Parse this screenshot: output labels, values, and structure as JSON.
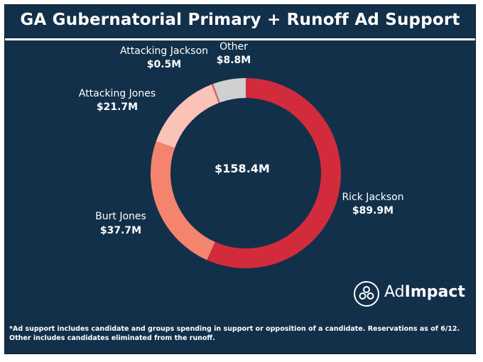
{
  "title": "GA Gubernatorial Primary + Runoff Ad Support",
  "chart_data": {
    "type": "pie",
    "style": "donut",
    "total_label": "$158.4M",
    "slices": [
      {
        "label": "Rick Jackson",
        "value_label": "$89.9M",
        "value": 89.9,
        "color": "#d22b3c"
      },
      {
        "label": "Burt Jones",
        "value_label": "$37.7M",
        "value": 37.7,
        "color": "#f4846d"
      },
      {
        "label": "Attacking Jones",
        "value_label": "$21.7M",
        "value": 21.7,
        "color": "#fbc2b8"
      },
      {
        "label": "Attacking Jackson",
        "value_label": "$0.5M",
        "value": 0.5,
        "color": "#e8655c"
      },
      {
        "label": "Other",
        "value_label": "$8.8M",
        "value": 8.8,
        "color": "#d0d0d0"
      }
    ]
  },
  "logo": {
    "part1": "Ad",
    "part2": "Impact",
    "icon": "adimpact-logo-icon"
  },
  "footnote": "*Ad support includes candidate and groups spending in support or opposition of a candidate. Reservations as of 6/12. Other includes candidates eliminated from the runoff.",
  "colors": {
    "background": "#13304a",
    "text": "#ffffff"
  }
}
